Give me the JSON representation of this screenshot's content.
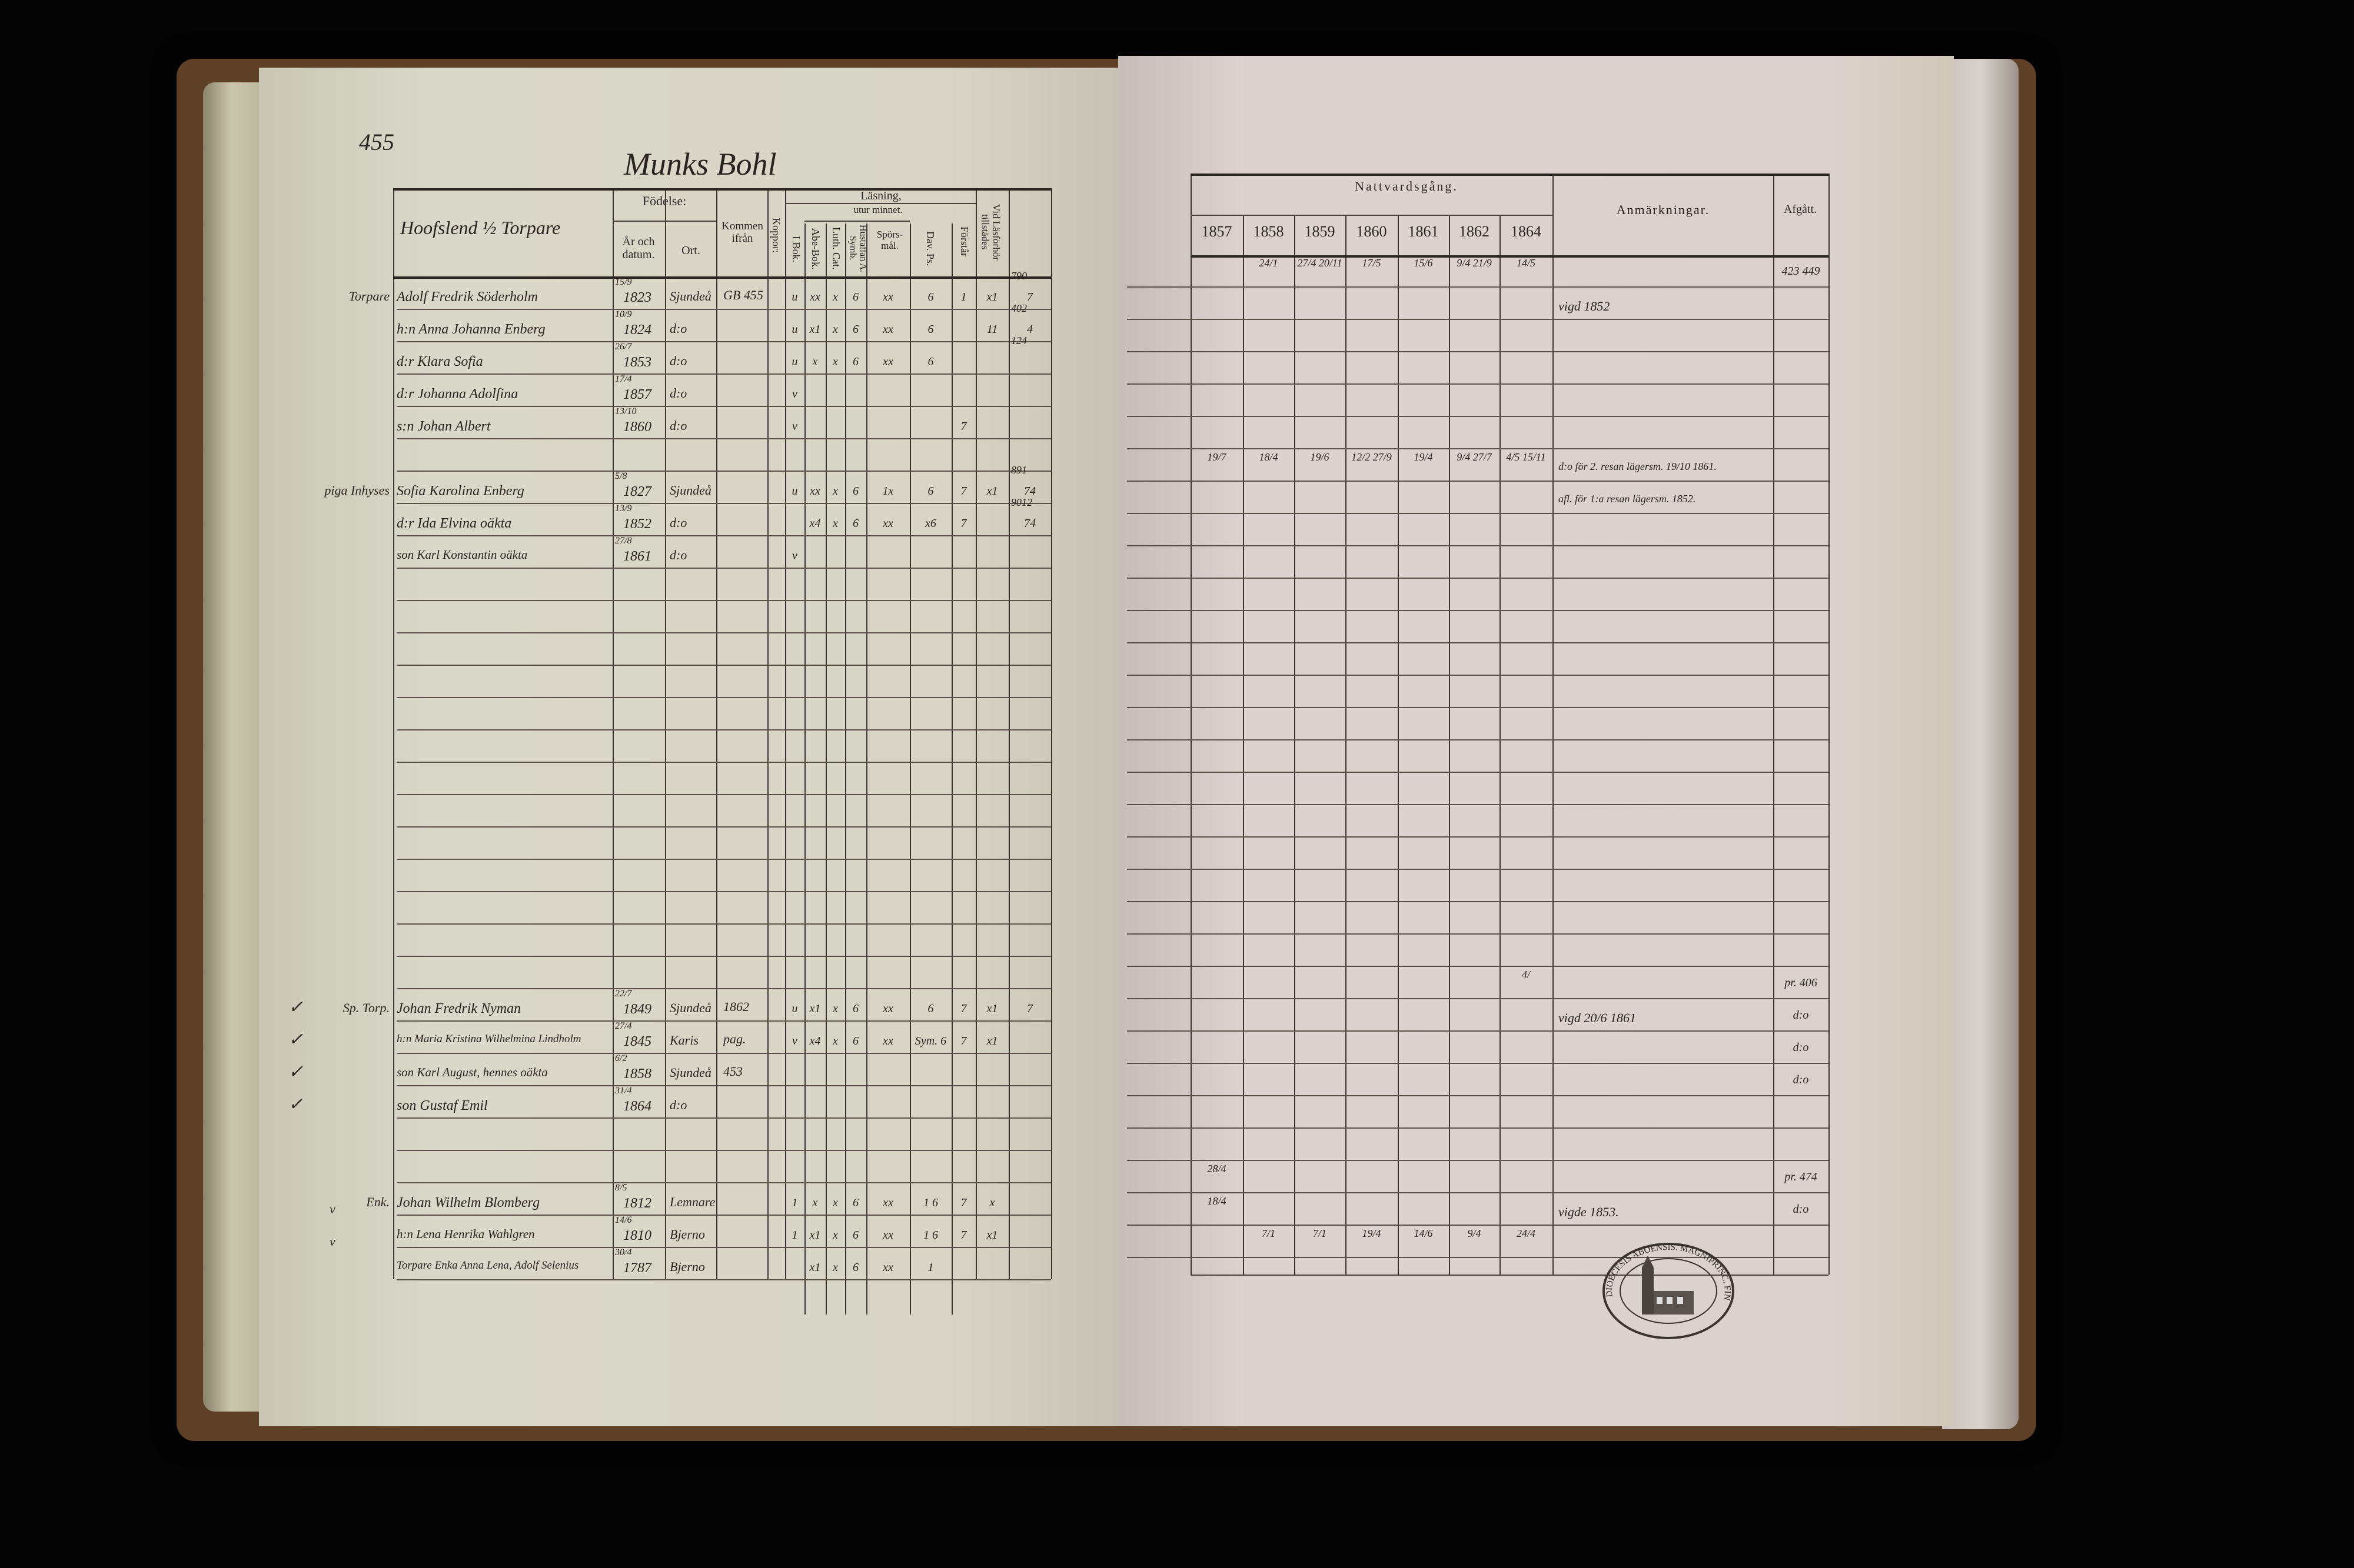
{
  "page_number": "455",
  "farm_title": "Munks Bohl",
  "left_header": {
    "household": "Hoofslend ½ Torpare",
    "birth": "Födelse:",
    "birth_year": "År och datum.",
    "birth_place": "Ort.",
    "came_from": "Kommen ifrån",
    "smallpox": "Koppor:",
    "reading": "Läsning,",
    "by_heart": "utur minnet.",
    "book": "I Bok.",
    "abc": "Abe-Bok.",
    "catechism": "Luth. Cat.",
    "house_table": "Hustaflan A. Symb.",
    "questions": "Spörs-mål.",
    "psalms": "Dav. Ps.",
    "understands": "Förstår",
    "present": "Vid Läsförhör tillstädes"
  },
  "right_header": {
    "communion": "Nattvardsgång.",
    "years": [
      "1857",
      "1858",
      "1859",
      "1860",
      "1861",
      "1862",
      "1864"
    ],
    "remarks": "Anmärkningar.",
    "departed": "Afgått."
  },
  "rows": [
    {
      "row": 0,
      "margin": "Torpare",
      "name": "Adolf Fredrik Söderholm",
      "date": "15/9",
      "year": "1823",
      "place": "Sjundeå",
      "from": "GB 455",
      "marks": [
        "u",
        "xx",
        "x",
        "6",
        "xx",
        "6",
        "1",
        "x1",
        "7"
      ],
      "extra": "790",
      "communion": [
        "",
        "24/1",
        "27/4 20/11",
        "17/5",
        "15/6",
        "9/4 21/9",
        "14/5"
      ],
      "remark": "",
      "departed": "423 449"
    },
    {
      "row": 1,
      "margin": "",
      "name": "h:n Anna Johanna Enberg",
      "date": "10/9",
      "year": "1824",
      "place": "d:o",
      "from": "",
      "marks": [
        "u",
        "x1",
        "x",
        "6",
        "xx",
        "6",
        "",
        "11",
        "4"
      ],
      "extra": "402",
      "communion": [],
      "remark": "vigd 1852",
      "departed": ""
    },
    {
      "row": 2,
      "margin": "",
      "name": "d:r Klara Sofia",
      "date": "26/7",
      "year": "1853",
      "place": "d:o",
      "from": "",
      "marks": [
        "u",
        "x",
        "x",
        "6",
        "xx",
        "6",
        "",
        "",
        ""
      ],
      "extra": "124",
      "communion": [],
      "remark": "",
      "departed": ""
    },
    {
      "row": 3,
      "margin": "",
      "name": "d:r Johanna Adolfina",
      "date": "17/4",
      "year": "1857",
      "place": "d:o",
      "from": "",
      "marks": [
        "v"
      ],
      "extra": "",
      "communion": [],
      "remark": "",
      "departed": ""
    },
    {
      "row": 4,
      "margin": "",
      "name": "s:n Johan Albert",
      "date": "13/10",
      "year": "1860",
      "place": "d:o",
      "from": "",
      "marks": [
        "v",
        "",
        "",
        "",
        "",
        "",
        "7"
      ],
      "extra": "",
      "communion": [],
      "remark": "",
      "departed": ""
    },
    {
      "row": 6,
      "margin": "piga  Inhyses",
      "name": "Sofia Karolina Enberg",
      "date": "5/8",
      "year": "1827",
      "place": "Sjundeå",
      "from": "",
      "marks": [
        "u",
        "xx",
        "x",
        "6",
        "1x",
        "6",
        "7",
        "x1",
        "74"
      ],
      "extra": "891",
      "communion": [
        "19/7",
        "18/4",
        "19/6",
        "12/2 27/9",
        "19/4",
        "9/4 27/7",
        "4/5 15/11"
      ],
      "remark": "d:o för 2. resan lägersm. 19/10 1861.",
      "departed": ""
    },
    {
      "row": 7,
      "margin": "",
      "name": "d:r Ida Elvina oäkta",
      "date": "13/9",
      "year": "1852",
      "place": "d:o",
      "from": "",
      "marks": [
        "",
        "x4",
        "x",
        "6",
        "xx",
        "x6",
        "7",
        "",
        "74"
      ],
      "extra": "9012",
      "communion": [],
      "remark": "afl. för 1:a resan lägersm. 1852.",
      "departed": ""
    },
    {
      "row": 8,
      "margin": "",
      "name": "son Karl Konstantin oäkta",
      "date": "27/8",
      "year": "1861",
      "place": "d:o",
      "from": "",
      "marks": [
        "v"
      ],
      "extra": "",
      "communion": [],
      "remark": "",
      "departed": ""
    },
    {
      "row": 22,
      "margin": "Sp. Torp.",
      "name": "Johan Fredrik Nyman",
      "date": "22/7",
      "year": "1849",
      "place": "Sjundeå",
      "from": "1862",
      "marks": [
        "u",
        "x1",
        "x",
        "6",
        "xx",
        "6",
        "7",
        "x1",
        "7"
      ],
      "extra": "",
      "communion": [
        "",
        "",
        "",
        "",
        "",
        "",
        "4/"
      ],
      "remark": "",
      "departed": "pr. 406"
    },
    {
      "row": 23,
      "margin": "",
      "name": "h:n Maria Kristina Wilhelmina Lindholm",
      "date": "27/4",
      "year": "1845",
      "place": "Karis",
      "from": "pag.",
      "marks": [
        "v",
        "x4",
        "x",
        "6",
        "xx",
        "Sym. 6",
        "7",
        "x1"
      ],
      "extra": "",
      "communion": [],
      "remark": "vigd 20/6 1861",
      "departed": "d:o"
    },
    {
      "row": 24,
      "margin": "",
      "name": "son Karl August, hennes oäkta",
      "date": "6/2",
      "year": "1858",
      "place": "Sjundeå",
      "from": "453",
      "marks": [],
      "extra": "",
      "communion": [],
      "remark": "",
      "departed": "d:o"
    },
    {
      "row": 25,
      "margin": "",
      "name": "son Gustaf Emil",
      "date": "31/4",
      "year": "1864",
      "place": "d:o",
      "from": "",
      "marks": [],
      "extra": "",
      "communion": [],
      "remark": "",
      "departed": "d:o"
    },
    {
      "row": 28,
      "margin": "Enk.",
      "name": "Johan Wilhelm Blomberg",
      "date": "8/5",
      "year": "1812",
      "place": "Lemnare",
      "from": "",
      "marks": [
        "1",
        "x",
        "x",
        "6",
        "xx",
        "1 6",
        "7",
        "x"
      ],
      "extra": "",
      "communion": [
        "28/4"
      ],
      "remark": "",
      "departed": "pr. 474"
    },
    {
      "row": 29,
      "margin": "",
      "name": "h:n Lena Henrika Wahlgren",
      "date": "14/6",
      "year": "1810",
      "place": "Bjerno",
      "from": "",
      "marks": [
        "1",
        "x1",
        "x",
        "6",
        "xx",
        "1 6",
        "7",
        "x1"
      ],
      "extra": "",
      "communion": [
        "18/4"
      ],
      "remark": "vigde 1853.",
      "departed": "d:o"
    },
    {
      "row": 30,
      "margin": "",
      "name": "Torpare Enka Anna Lena, Adolf Selenius",
      "date": "30/4",
      "year": "1787",
      "place": "Bjerno",
      "from": "",
      "marks": [
        "",
        "x1",
        "x",
        "6",
        "xx",
        "1"
      ],
      "extra": "",
      "communion": [
        "",
        "7/1",
        "7/1",
        "19/4",
        "14/6",
        "9/4",
        "24/4"
      ],
      "remark": "",
      "departed": ""
    }
  ],
  "margin_checks": [
    22,
    23,
    24,
    25
  ],
  "margin_v": [
    28,
    29
  ],
  "stamp": "DIOECESIS ABOENSIS. MAGNIPRINC. FINL.",
  "colors": {
    "ink": "#2a2420",
    "left_paper": "#d9d6c8",
    "right_paper": "#dbd2ce",
    "cover": "#5e4026"
  }
}
